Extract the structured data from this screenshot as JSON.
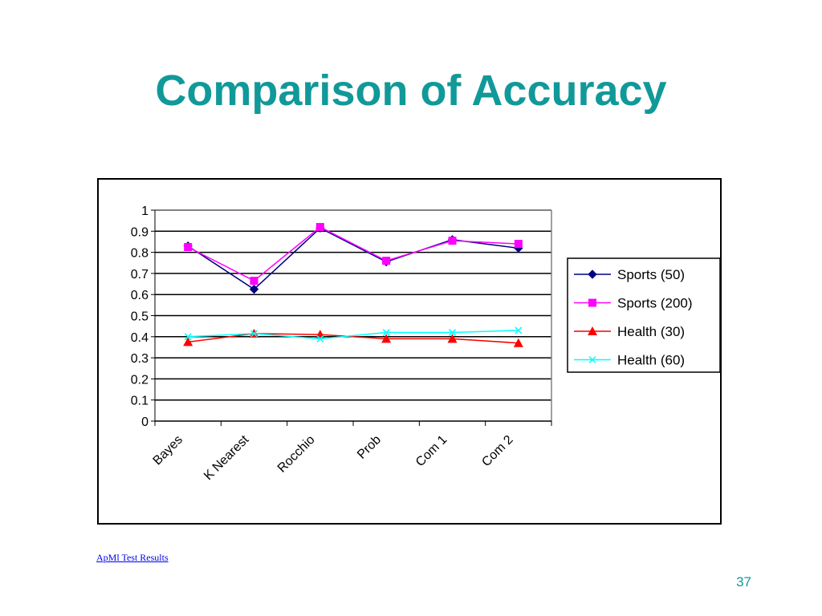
{
  "slide": {
    "title": "Comparison of Accuracy",
    "title_color": "#119999",
    "footer_link": "ApMl Test Results",
    "page_number": "37"
  },
  "chart_data": {
    "type": "line",
    "title": "",
    "xlabel": "",
    "ylabel": "",
    "categories": [
      "Bayes",
      "K Nearest",
      "Rocchio",
      "Prob",
      "Com 1",
      "Com 2"
    ],
    "ylim": [
      0,
      1
    ],
    "yticks": [
      "0",
      "0.1",
      "0.2",
      "0.3",
      "0.4",
      "0.5",
      "0.6",
      "0.7",
      "0.8",
      "0.9",
      "1"
    ],
    "grid": true,
    "legend_position": "right",
    "series": [
      {
        "name": "Sports (50)",
        "color": "#000080",
        "marker": "diamond",
        "values": [
          0.83,
          0.625,
          0.915,
          0.755,
          0.86,
          0.82
        ]
      },
      {
        "name": "Sports (200)",
        "color": "#ff00ff",
        "marker": "square",
        "values": [
          0.825,
          0.665,
          0.92,
          0.76,
          0.855,
          0.84
        ]
      },
      {
        "name": "Health (30)",
        "color": "#ff0000",
        "marker": "triangle",
        "values": [
          0.375,
          0.415,
          0.41,
          0.39,
          0.39,
          0.37
        ]
      },
      {
        "name": "Health (60)",
        "color": "#00ffff",
        "marker": "x",
        "values": [
          0.4,
          0.415,
          0.39,
          0.42,
          0.42,
          0.43
        ]
      }
    ]
  }
}
